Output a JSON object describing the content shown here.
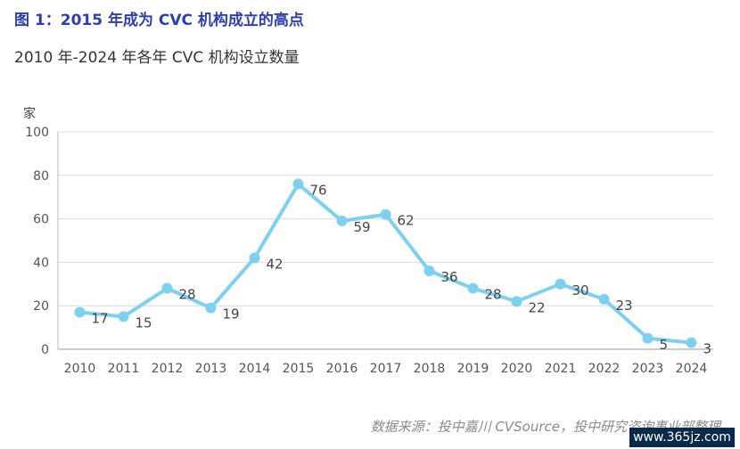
{
  "title": "图 1：2015 年成为 CVC 机构成立的高点",
  "subtitle": "2010 年-2024 年各年 CVC 机构设立数量",
  "source": "数据来源：投中嘉川 CVSource，投中研究咨询事业部整理",
  "watermark": "www.365jz.com",
  "colors": {
    "line": "#7dd0f0",
    "title": "#2c3eb0",
    "grid": "#dcdcdc"
  },
  "chart_data": {
    "type": "line",
    "ylabel": "家",
    "xlabel": "",
    "ylim": [
      0,
      100
    ],
    "yticks": [
      "0",
      "20",
      "40",
      "60",
      "80",
      "100"
    ],
    "categories": [
      "2010",
      "2011",
      "2012",
      "2013",
      "2014",
      "2015",
      "2016",
      "2017",
      "2018",
      "2019",
      "2020",
      "2021",
      "2022",
      "2023",
      "2024"
    ],
    "values": [
      17,
      15,
      28,
      19,
      42,
      76,
      59,
      62,
      36,
      28,
      22,
      30,
      23,
      5,
      3
    ],
    "data_labels": [
      "17",
      "15",
      "28",
      "19",
      "42",
      "76",
      "59",
      "62",
      "36",
      "28",
      "22",
      "30",
      "23",
      "5",
      "3"
    ],
    "grid": true,
    "legend": "none"
  }
}
